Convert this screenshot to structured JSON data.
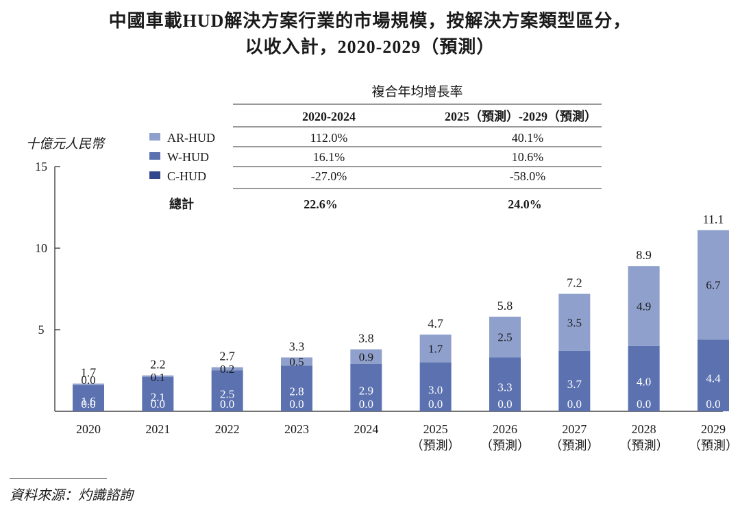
{
  "title_line1": "中國車載HUD解決方案行業的市場規模，按解決方案類型區分，",
  "title_line2": "以收入計，2020-2029（預測）",
  "source": "資料來源：灼識諮詢",
  "colors": {
    "ar": "#8fa0cc",
    "w": "#5c72b0",
    "c": "#33488c",
    "axis": "#222222"
  },
  "cagr_table": {
    "header": "複合年均增長率",
    "col1": "2020-2024",
    "col2": "2025（預測）-2029（預測）",
    "rows": [
      {
        "name": "AR-HUD",
        "v1": "112.0%",
        "v2": "40.1%"
      },
      {
        "name": "W-HUD",
        "v1": "16.1%",
        "v2": "10.6%"
      },
      {
        "name": "C-HUD",
        "v1": "-27.0%",
        "v2": "-58.0%"
      }
    ],
    "total": {
      "name": "總計",
      "v1": "22.6%",
      "v2": "24.0%"
    }
  },
  "chart_data": {
    "type": "bar",
    "stacked": true,
    "ylabel": "十億元人民幣",
    "ylim": [
      0,
      15
    ],
    "yticks": [
      5,
      10,
      15
    ],
    "categories": [
      "2020",
      "2021",
      "2022",
      "2023",
      "2024",
      "2025",
      "2026",
      "2027",
      "2028",
      "2029"
    ],
    "category_sublabels": [
      "",
      "",
      "",
      "",
      "",
      "（預測）",
      "（預測）",
      "（預測）",
      "（預測）",
      "（預測）"
    ],
    "series": [
      {
        "name": "C-HUD",
        "values": [
          0.0,
          0.0,
          0.0,
          0.0,
          0.0,
          0.0,
          0.0,
          0.0,
          0.0,
          0.0
        ]
      },
      {
        "name": "W-HUD",
        "values": [
          1.6,
          2.1,
          2.5,
          2.8,
          2.9,
          3.0,
          3.3,
          3.7,
          4.0,
          4.4
        ]
      },
      {
        "name": "AR-HUD",
        "values": [
          0.0,
          0.1,
          0.2,
          0.5,
          0.9,
          1.7,
          2.5,
          3.5,
          4.9,
          6.7
        ]
      }
    ],
    "totals": [
      1.7,
      2.2,
      2.7,
      3.3,
      3.8,
      4.7,
      5.8,
      7.2,
      8.9,
      11.1
    ],
    "legend": "top-left"
  }
}
